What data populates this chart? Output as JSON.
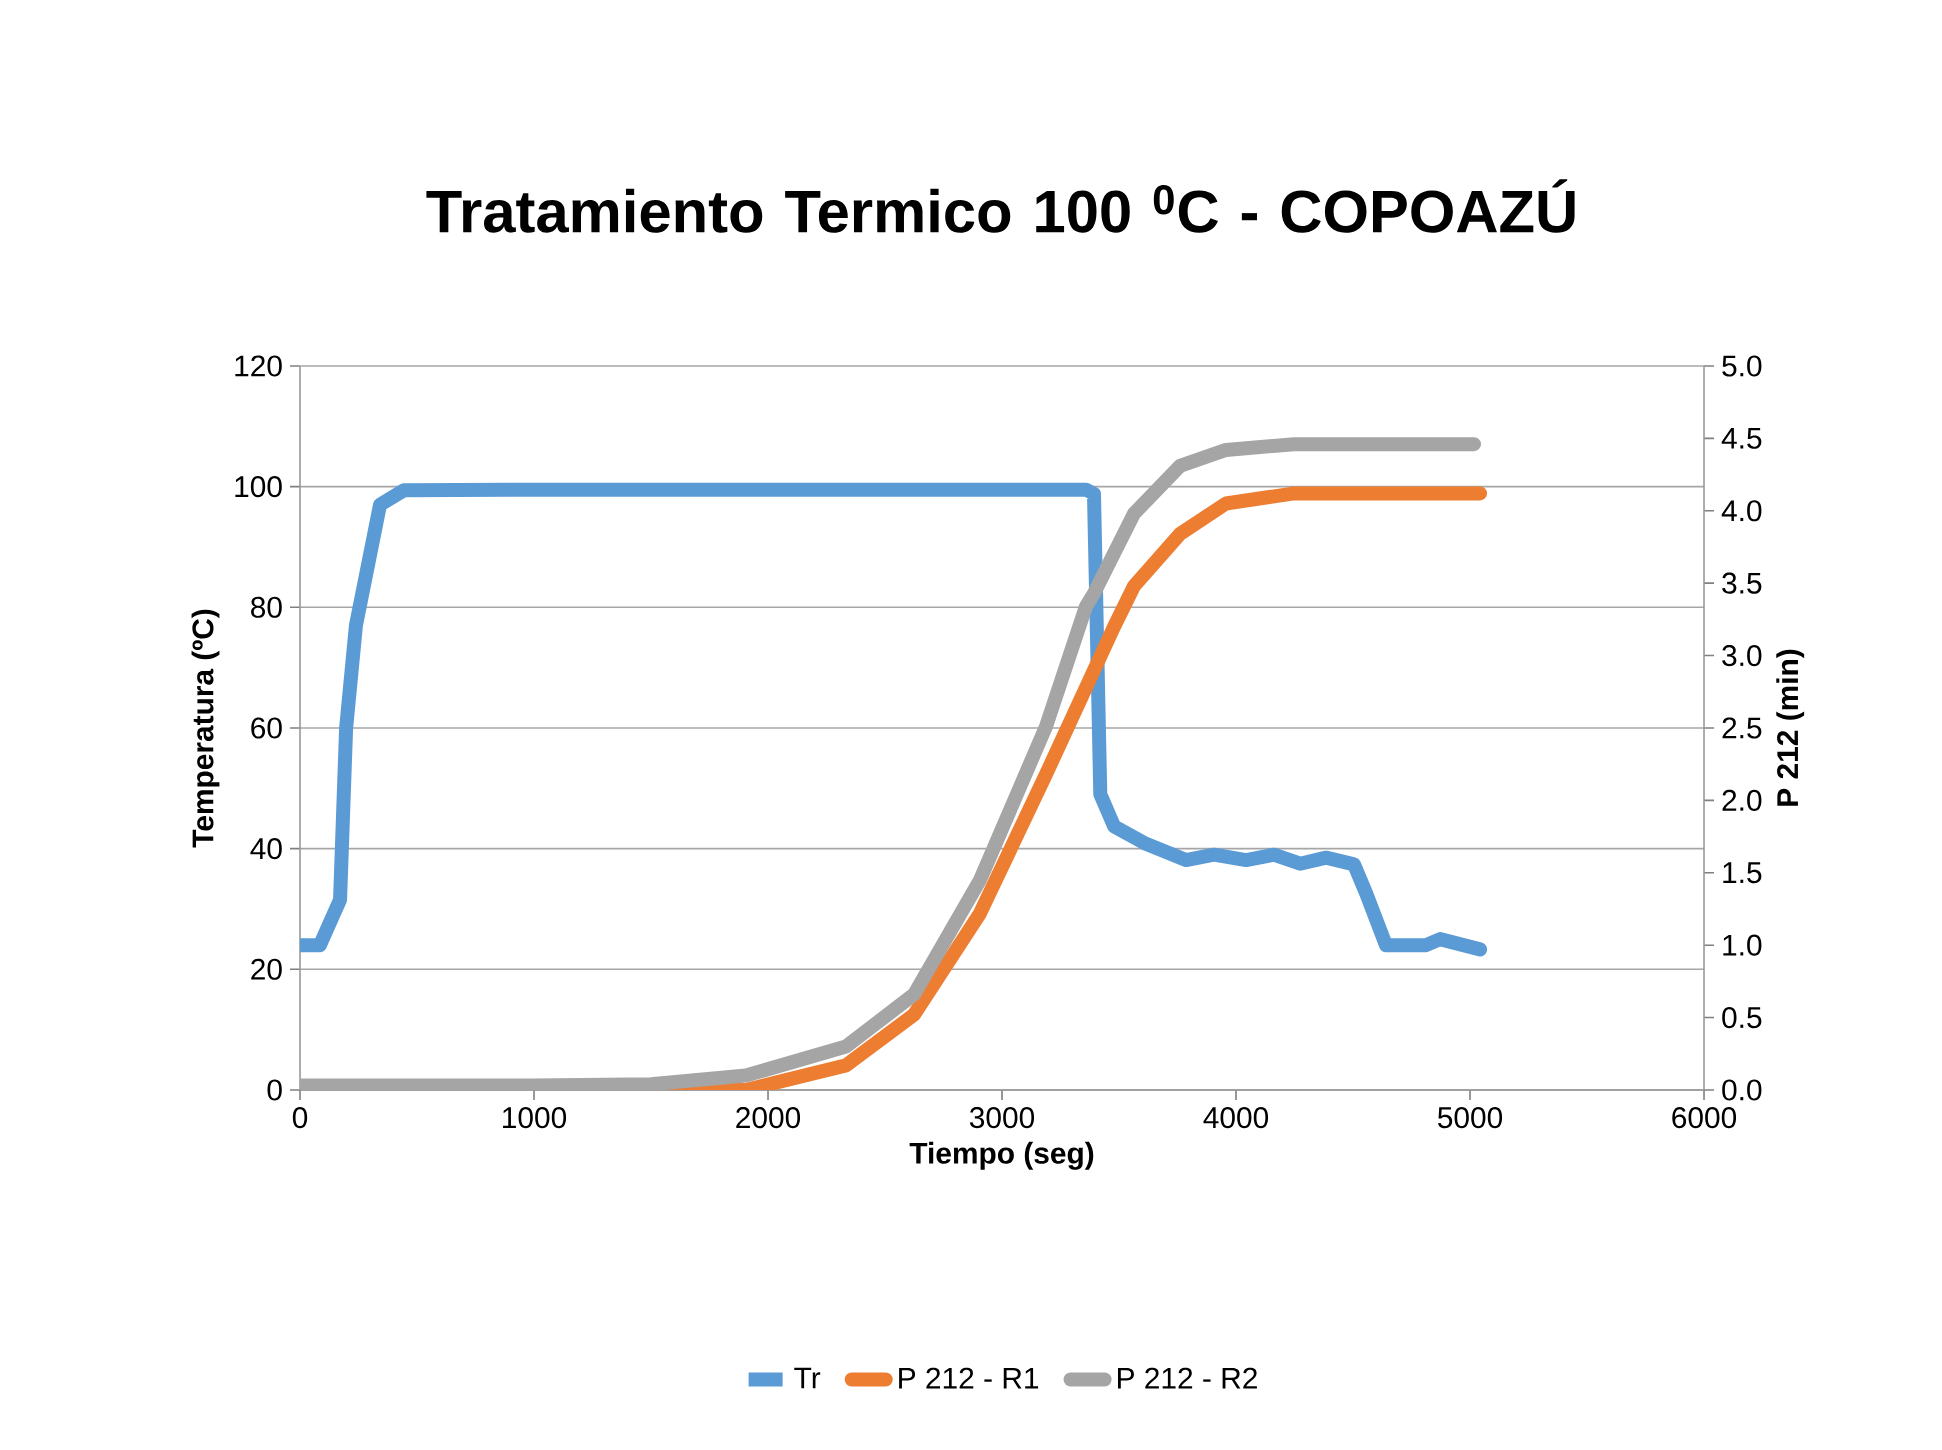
{
  "chart_data": {
    "type": "line",
    "title": "Tratamiento Termico 100 $^{0}$C - COPOAZÚ",
    "xlabel": "Tiempo (seg)",
    "ylabel": "Temperatura (ºC)",
    "y2label": "P 212 (min)",
    "xlim": [
      0,
      6000
    ],
    "xticks": [
      0,
      1000,
      2000,
      3000,
      4000,
      5000,
      6000
    ],
    "ylim": [
      0,
      120
    ],
    "yticks": [
      0,
      20,
      40,
      60,
      80,
      100,
      120
    ],
    "y2lim": [
      0,
      5.0
    ],
    "y2ticks": [
      {
        "value": 0,
        "label": "0.0"
      },
      {
        "value": 0.5,
        "label": "0.5"
      },
      {
        "value": 1,
        "label": "1.0"
      },
      {
        "value": 1.5,
        "label": "1.5"
      },
      {
        "value": 2,
        "label": "2.0"
      },
      {
        "value": 2.5,
        "label": "2.5"
      },
      {
        "value": 3,
        "label": "3.0"
      },
      {
        "value": 3.5,
        "label": "3.5"
      },
      {
        "value": 4,
        "label": "4.0"
      },
      {
        "value": 4.5,
        "label": "4.5"
      },
      {
        "value": 5,
        "label": "5.0"
      }
    ],
    "grid": "y",
    "legend": "bottom",
    "marker": "none",
    "line_style": "solid",
    "series": [
      {
        "name": "Tr",
        "color": "#5b9bd5",
        "x": [
          0,
          60,
          85,
          171,
          197,
          239,
          342,
          444,
          1000,
          2000,
          3000,
          3359,
          3393,
          3420,
          3479,
          3615,
          3786,
          3906,
          4043,
          4162,
          4274,
          4385,
          4504,
          4556,
          4641,
          4812,
          4872,
          5043
        ],
        "values": [
          24,
          24,
          24,
          31.5,
          60,
          77,
          97,
          99.4,
          99.5,
          99.5,
          99.5,
          99.5,
          98.8,
          49,
          43.7,
          40.8,
          38.1,
          39,
          38.1,
          39,
          37.5,
          38.5,
          37.4,
          32.6,
          24,
          24,
          25,
          23.3
        ]
      },
      {
        "name": "P 212 - R1",
        "color": "#ed7d31",
        "axis": "y2",
        "x": [
          0,
          1000,
          1906,
          2333,
          2624,
          2906,
          3188,
          3479,
          3564,
          3761,
          3957,
          4248,
          5043
        ],
        "values": [
          0,
          0,
          0,
          0.17,
          0.52,
          1.22,
          2.18,
          3.2,
          3.48,
          3.84,
          4.05,
          4.12,
          4.12
        ]
      },
      {
        "name": "P 212 - R2",
        "color": "#a5a5a5",
        "axis": "y2",
        "x": [
          0,
          1000,
          1500,
          1906,
          2333,
          2624,
          2906,
          3188,
          3359,
          3393,
          3564,
          3761,
          3957,
          4248,
          5017
        ],
        "values": [
          0.03,
          0.03,
          0.04,
          0.1,
          0.3,
          0.66,
          1.45,
          2.51,
          3.34,
          3.43,
          3.98,
          4.31,
          4.42,
          4.46,
          4.46
        ]
      }
    ]
  }
}
